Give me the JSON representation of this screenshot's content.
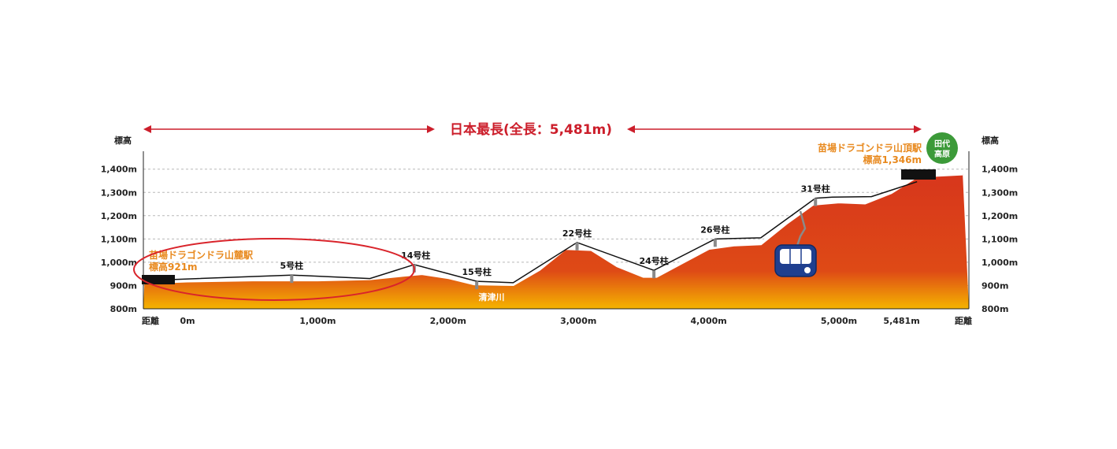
{
  "title": "日本最長(全長：5,481m)",
  "axis": {
    "elevation_label_left": "標高",
    "elevation_label_right": "標高",
    "distance_label_left": "距離",
    "distance_label_right": "距離",
    "elevation_ticks": [
      {
        "value": 1400,
        "label": "1,400m"
      },
      {
        "value": 1300,
        "label": "1,300m"
      },
      {
        "value": 1200,
        "label": "1,200m"
      },
      {
        "value": 1100,
        "label": "1,100m"
      },
      {
        "value": 1000,
        "label": "1,000m"
      },
      {
        "value": 900,
        "label": "900m"
      },
      {
        "value": 800,
        "label": "800m"
      }
    ],
    "distance_ticks": [
      {
        "value": 0,
        "label": "0m"
      },
      {
        "value": 1000,
        "label": "1,000m"
      },
      {
        "value": 2000,
        "label": "2,000m"
      },
      {
        "value": 3000,
        "label": "3,000m"
      },
      {
        "value": 4000,
        "label": "4,000m"
      },
      {
        "value": 5000,
        "label": "5,000m"
      },
      {
        "value": 5481,
        "label": "5,481m"
      }
    ]
  },
  "stations": {
    "base_name": "苗場ドラゴンドラ山麓駅",
    "base_elevation": "標高921m",
    "top_name": "苗場ドラゴンドラ山頂駅",
    "top_elevation": "標高1,346m",
    "top_badge": [
      "田代",
      "高原"
    ]
  },
  "pylons": [
    {
      "label": "5号柱",
      "distance": 800,
      "elevation": 935
    },
    {
      "label": "14号柱",
      "distance": 1740,
      "elevation": 980
    },
    {
      "label": "15号柱",
      "distance": 2220,
      "elevation": 908
    },
    {
      "label": "22号柱",
      "distance": 2990,
      "elevation": 1075
    },
    {
      "label": "24号柱",
      "distance": 3580,
      "elevation": 955
    },
    {
      "label": "26号柱",
      "distance": 4050,
      "elevation": 1090
    },
    {
      "label": "31号柱",
      "distance": 4820,
      "elevation": 1265
    }
  ],
  "river": "清津川",
  "colors": {
    "terrain_top": "#d7361c",
    "terrain_bottom": "#f5b400",
    "cable": "#111111",
    "title": "#cc1e2b",
    "station_label": "#e8891e",
    "badge": "#3c9a39",
    "gondola": "#1f3f8f",
    "highlight_ring": "#d9242b"
  },
  "chart_data": {
    "type": "area",
    "x": [
      -330,
      0,
      500,
      1000,
      1400,
      1650,
      1800,
      2000,
      2200,
      2500,
      2700,
      2900,
      3100,
      3300,
      3500,
      3600,
      3800,
      4000,
      4200,
      4400,
      4600,
      4800,
      5000,
      5200,
      5400,
      5600,
      5950
    ],
    "y": [
      913,
      920,
      925,
      925,
      930,
      944,
      952,
      935,
      908,
      905,
      970,
      1060,
      1055,
      985,
      940,
      940,
      1000,
      1060,
      1075,
      1080,
      1170,
      1250,
      1260,
      1255,
      1300,
      1370,
      1380
    ],
    "xlabel": "距離",
    "ylabel": "標高",
    "ylim": [
      800,
      1400
    ]
  }
}
